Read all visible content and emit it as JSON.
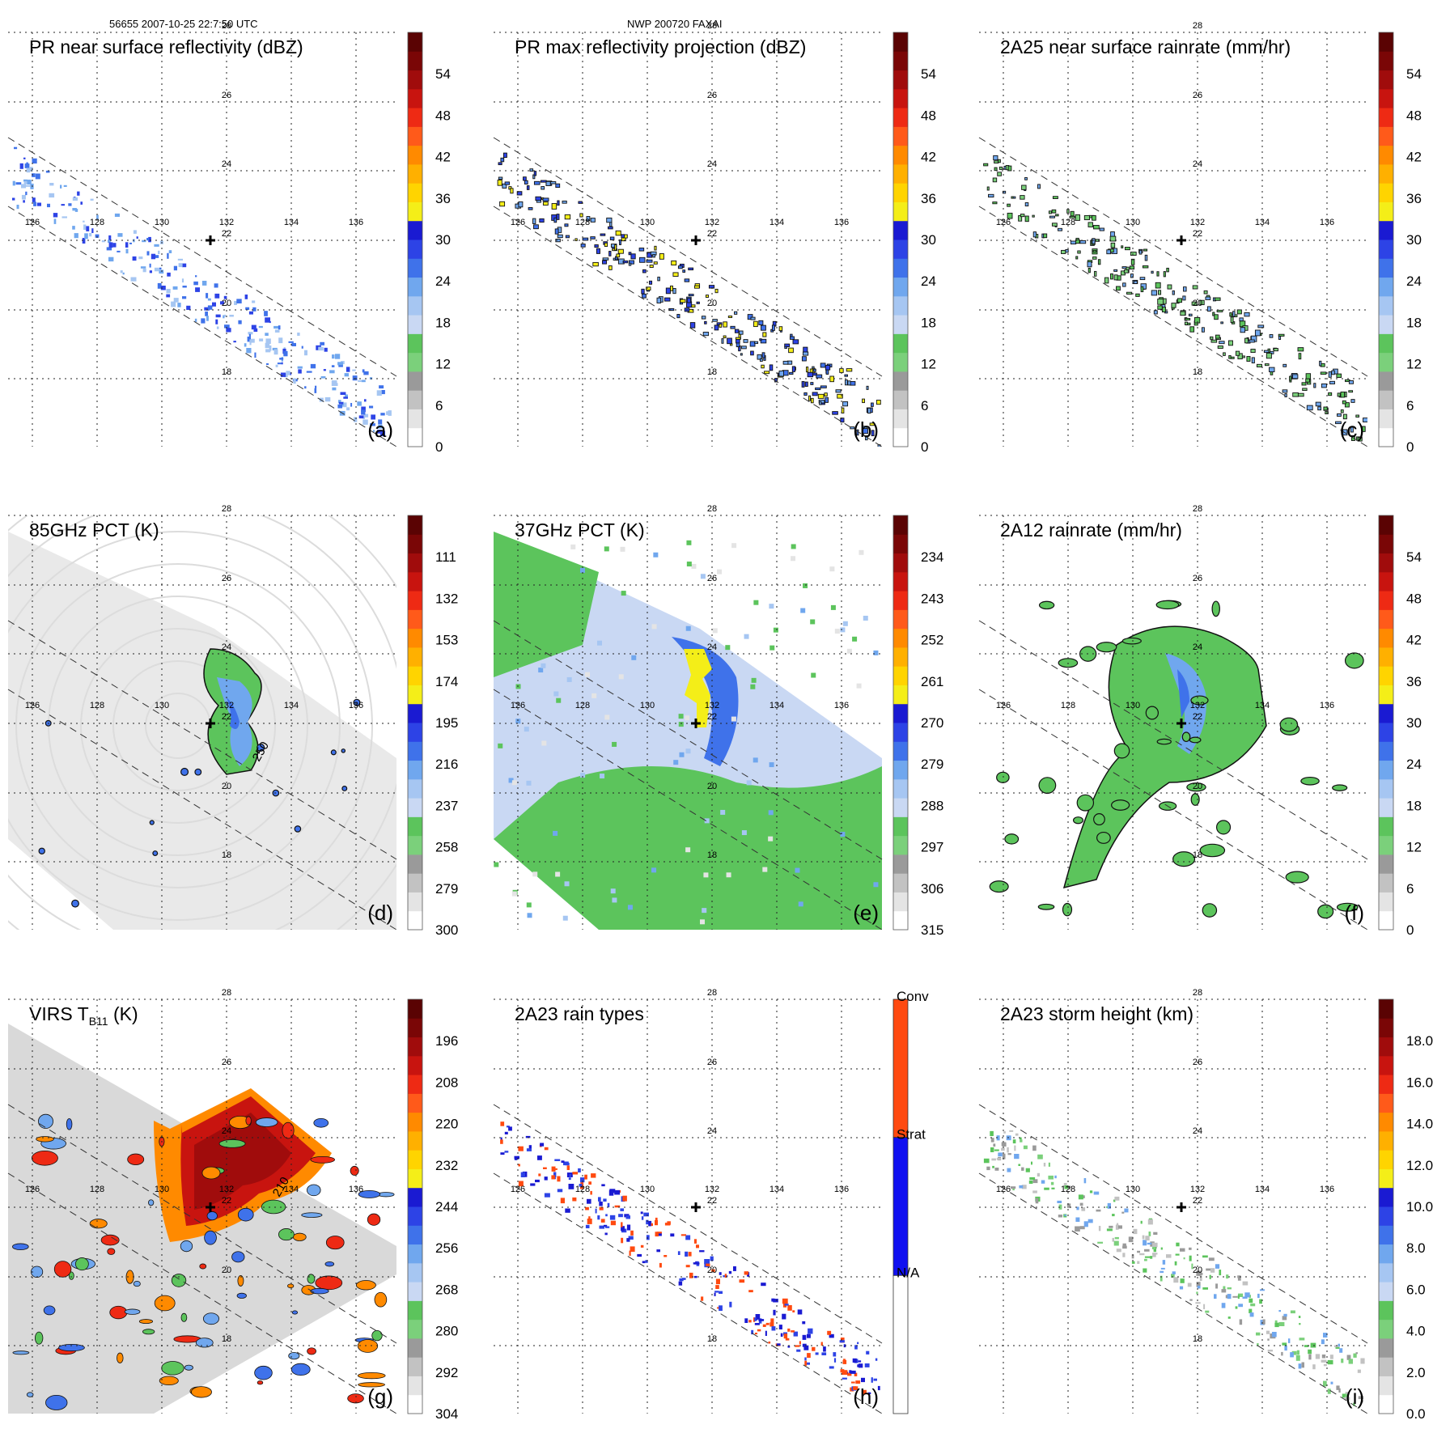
{
  "header": {
    "left": "56655 2007-10-25 22:7:50 UTC",
    "center": "NWP 200720 FAXAI"
  },
  "map": {
    "lat_ticks": [
      "28",
      "26",
      "24",
      "22",
      "20",
      "18"
    ],
    "lon_ticks": [
      "126",
      "128",
      "130",
      "132",
      "134",
      "136"
    ],
    "center_marker": {
      "lat": 22,
      "lon": 131.3
    }
  },
  "chart_data": [
    {
      "id": "a",
      "type": "heatmap",
      "title": "PR near surface reflectivity (dBZ)",
      "label": "(a)",
      "colorbar": {
        "ticks": [
          "54",
          "48",
          "42",
          "36",
          "30",
          "24",
          "18",
          "12",
          "6",
          "0"
        ]
      },
      "field": "pr_swath"
    },
    {
      "id": "b",
      "type": "heatmap",
      "title": "PR max reflectivity projection (dBZ)",
      "label": "(b)",
      "colorbar": {
        "ticks": [
          "54",
          "48",
          "42",
          "36",
          "30",
          "24",
          "18",
          "12",
          "6",
          "0"
        ]
      },
      "field": "pr_swath"
    },
    {
      "id": "c",
      "type": "heatmap",
      "title": "2A25 near surface rainrate (mm/hr)",
      "label": "(c)",
      "colorbar": {
        "ticks": [
          "54",
          "48",
          "42",
          "36",
          "30",
          "24",
          "18",
          "12",
          "6",
          "0"
        ]
      },
      "field": "pr_swath"
    },
    {
      "id": "d",
      "type": "heatmap",
      "title": "85GHz PCT (K)",
      "label": "(d)",
      "colorbar": {
        "ticks": [
          "111",
          "132",
          "153",
          "174",
          "195",
          "216",
          "237",
          "258",
          "279",
          "300"
        ]
      },
      "contour_label": "250",
      "field": "tmi_swath"
    },
    {
      "id": "e",
      "type": "heatmap",
      "title": "37GHz PCT (K)",
      "label": "(e)",
      "colorbar": {
        "ticks": [
          "234",
          "243",
          "252",
          "261",
          "270",
          "279",
          "288",
          "297",
          "306",
          "315"
        ]
      },
      "field": "tmi_swath"
    },
    {
      "id": "f",
      "type": "heatmap",
      "title": "2A12 rainrate (mm/hr)",
      "label": "(f)",
      "colorbar": {
        "ticks": [
          "54",
          "48",
          "42",
          "36",
          "30",
          "24",
          "18",
          "12",
          "6",
          "0"
        ]
      },
      "field": "tmi_swath"
    },
    {
      "id": "g",
      "type": "heatmap",
      "title": "VIRS T",
      "title_sub": "B11",
      "title_tail": " (K)",
      "label": "(g)",
      "colorbar": {
        "ticks": [
          "196",
          "208",
          "220",
          "232",
          "244",
          "256",
          "268",
          "280",
          "292",
          "304"
        ]
      },
      "contour_label": "210",
      "field": "virs_swath"
    },
    {
      "id": "h",
      "type": "heatmap",
      "title": "2A23 rain types",
      "label": "(h)",
      "colorbar": {
        "categories": [
          "Conv",
          "Strat",
          "N/A"
        ]
      },
      "field": "pr_swath"
    },
    {
      "id": "i",
      "type": "heatmap",
      "title": "2A23 storm height (km)",
      "label": "(i)",
      "colorbar": {
        "ticks": [
          "18.0",
          "16.0",
          "14.0",
          "12.0",
          "10.0",
          "8.0",
          "6.0",
          "4.0",
          "2.0",
          "0.0"
        ]
      },
      "field": "pr_swath"
    }
  ],
  "colors": {
    "colorbar": [
      "#ffffff",
      "#e4e4e4",
      "#c2c2c2",
      "#9a9a9a",
      "#7bd07b",
      "#5cc45c",
      "#c9d8f3",
      "#a6c6f2",
      "#70a7ee",
      "#3f72ea",
      "#2d43e6",
      "#1a1ad2",
      "#f4ee18",
      "#ffd400",
      "#ffb000",
      "#ff8a00",
      "#ff5a1a",
      "#ee2a14",
      "#c8140f",
      "#a00c0c",
      "#7a0606",
      "#5a0303"
    ],
    "rain_types": {
      "Conv": "#ff4a10",
      "Strat": "#1010f0",
      "N/A": "#ffffff"
    }
  }
}
